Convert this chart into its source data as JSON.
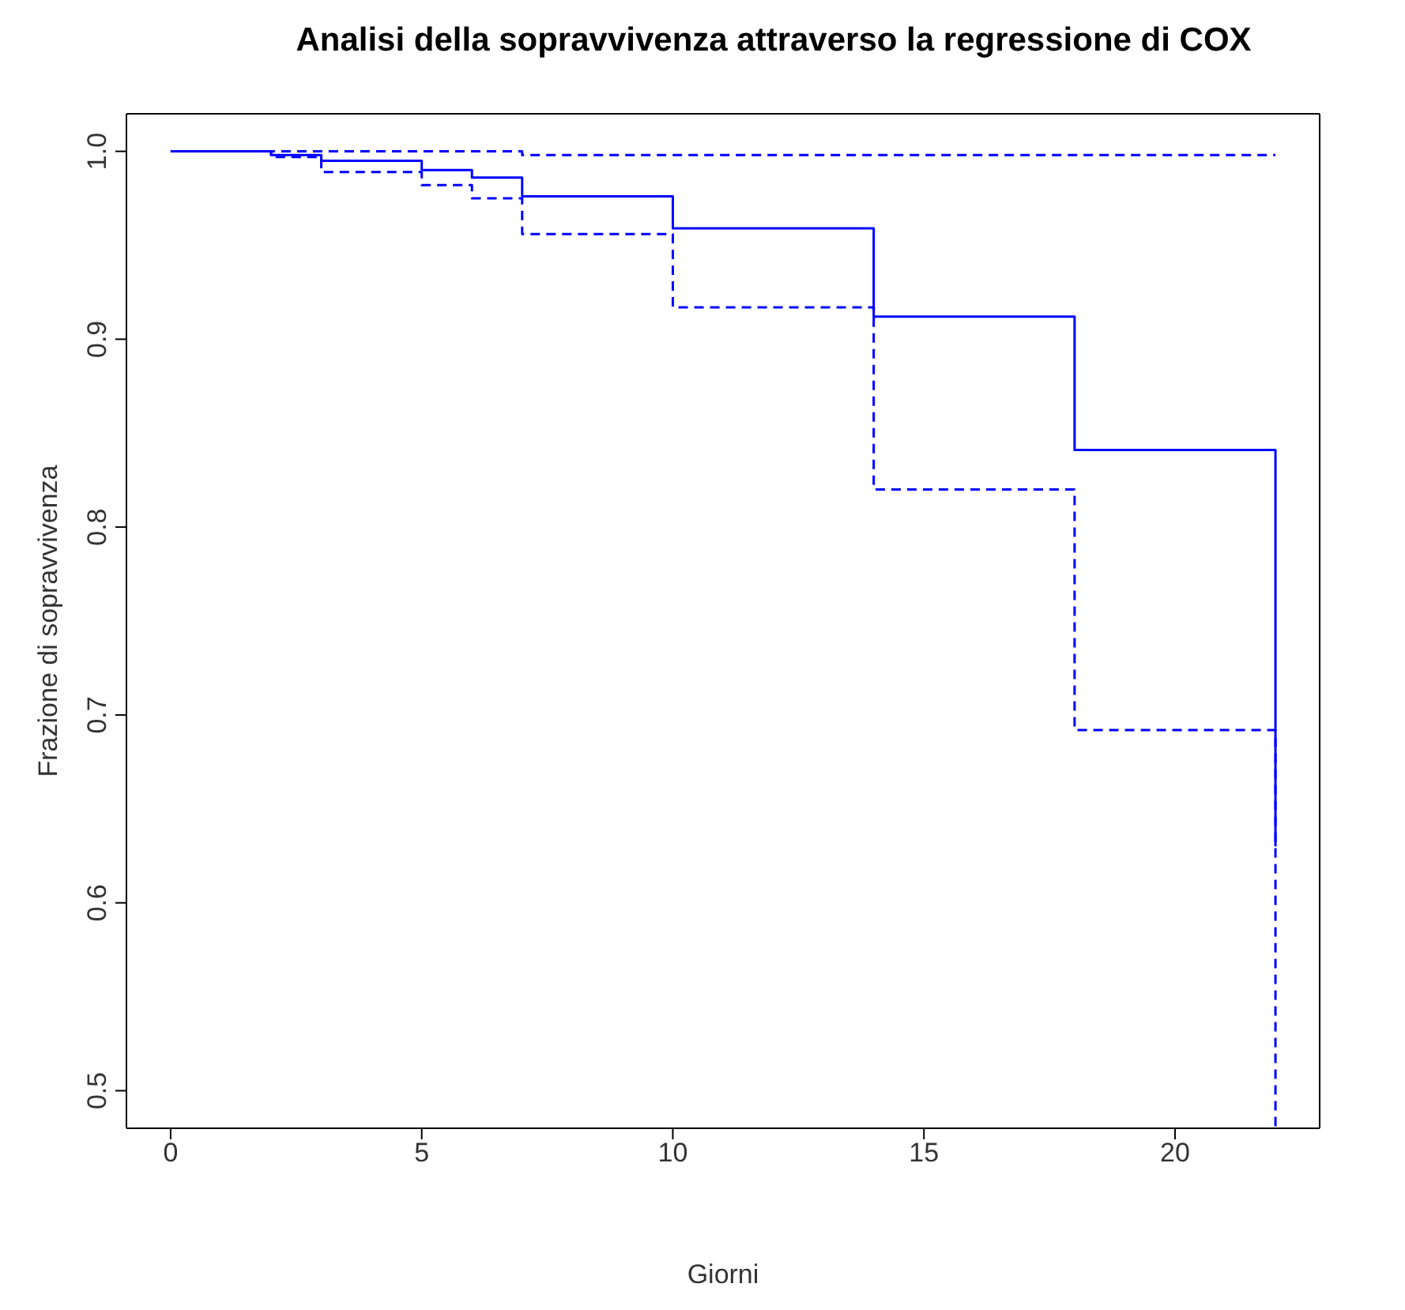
{
  "chart_data": {
    "type": "step",
    "title": "Analisi della sopravvivenza attraverso la regressione di COX",
    "xlabel": "Giorni",
    "ylabel": "Frazione di sopravvivenza",
    "series": [
      {
        "color": "#0000ff",
        "line_style": "solid",
        "x": [
          0,
          2,
          3,
          5,
          6,
          7,
          10,
          14,
          18,
          22
        ],
        "values": [
          1,
          0.998,
          0.995,
          0.99,
          0.986,
          0.976,
          0.959,
          0.912,
          0.841,
          0.63
        ]
      },
      {
        "color": "#0000ff",
        "line_style": "dashed",
        "x": [
          0,
          2,
          3,
          5,
          6,
          7,
          10,
          14,
          18,
          22
        ],
        "values": [
          1,
          0.997,
          0.989,
          0.982,
          0.975,
          0.956,
          0.917,
          0.82,
          0.692,
          0.48
        ]
      },
      {
        "color": "#0000ff",
        "line_style": "dashed",
        "x": [
          0,
          7,
          22
        ],
        "values": [
          1,
          0.998,
          0.998
        ]
      }
    ],
    "xlim": [
      -0.88,
      22.88
    ],
    "ylim": [
      0.48,
      1.02
    ],
    "xticks": [
      0,
      5,
      10,
      15,
      20
    ],
    "yticks": [
      0.5,
      0.6,
      0.7,
      0.8,
      0.9,
      {
        "value": 1,
        "label": "1.0"
      }
    ],
    "grid": false,
    "legend": false,
    "marker": "none"
  }
}
